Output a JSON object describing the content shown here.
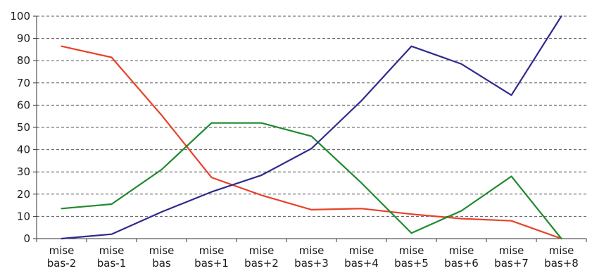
{
  "chart_data": {
    "type": "line",
    "title": "",
    "xlabel": "",
    "ylabel": "",
    "ylim": [
      0,
      100
    ],
    "yticks": [
      0,
      10,
      20,
      30,
      40,
      50,
      60,
      70,
      80,
      90,
      100
    ],
    "grid": "horizontal-dashed",
    "legend": "none",
    "categories": [
      [
        "mise",
        "bas-2"
      ],
      [
        "mise",
        "bas-1"
      ],
      [
        "mise",
        "bas"
      ],
      [
        "mise",
        "bas+1"
      ],
      [
        "mise",
        "bas+2"
      ],
      [
        "mise",
        "bas+3"
      ],
      [
        "mise",
        "bas+4"
      ],
      [
        "mise",
        "bas+5"
      ],
      [
        "mise",
        "bas+6"
      ],
      [
        "mise",
        "bas+7"
      ],
      [
        "mise",
        "bas+8"
      ]
    ],
    "series": [
      {
        "color": "#e8412a",
        "values": [
          86.5,
          81.5,
          55.5,
          27.5,
          19.5,
          13,
          13.5,
          11,
          9,
          8,
          0
        ]
      },
      {
        "color": "#1f8a2e",
        "values": [
          13.5,
          15.5,
          31,
          52,
          52,
          46,
          25,
          2.5,
          12.5,
          28,
          0
        ]
      },
      {
        "color": "#2f2a8c",
        "values": [
          0,
          2,
          12,
          21,
          28.5,
          40.5,
          62,
          86.5,
          78.5,
          64.5,
          100
        ]
      }
    ]
  }
}
